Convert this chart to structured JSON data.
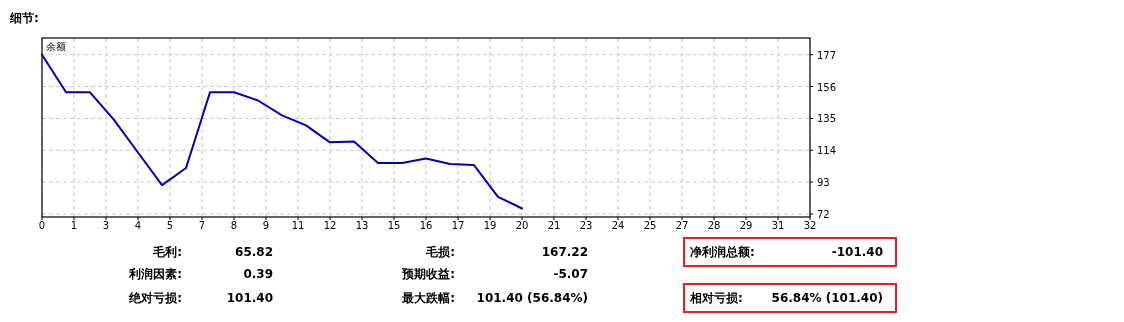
{
  "chart_data": {
    "type": "line",
    "title": "细节:",
    "x": [
      0,
      1,
      2,
      3,
      4,
      5,
      6,
      7,
      8,
      9,
      10,
      11,
      12,
      13,
      14,
      15,
      16,
      17,
      18,
      19,
      20
    ],
    "series": [
      {
        "name": "余额",
        "color": "#0000aa",
        "values": [
          177,
          152.2,
          152.2,
          134,
          112.5,
          91,
          102.3,
          152.2,
          152.2,
          146.8,
          137,
          130.4,
          119.2,
          119.8,
          105.6,
          105.6,
          108.6,
          104.9,
          104.2,
          83.3,
          75.6
        ]
      }
    ],
    "xlim": [
      0,
      32
    ],
    "xticks": [
      {
        "value": 0,
        "label": "0"
      },
      {
        "value": 1.3333,
        "label": "1"
      },
      {
        "value": 2.6667,
        "label": "3"
      },
      {
        "value": 4,
        "label": "4"
      },
      {
        "value": 5.3333,
        "label": "5"
      },
      {
        "value": 6.6667,
        "label": "7"
      },
      {
        "value": 8,
        "label": "8"
      },
      {
        "value": 9.3333,
        "label": "9"
      },
      {
        "value": 10.6667,
        "label": "11"
      },
      {
        "value": 12,
        "label": "12"
      },
      {
        "value": 13.3333,
        "label": "13"
      },
      {
        "value": 14.6667,
        "label": "15"
      },
      {
        "value": 16,
        "label": "16"
      },
      {
        "value": 17.3333,
        "label": "17"
      },
      {
        "value": 18.6667,
        "label": "19"
      },
      {
        "value": 20,
        "label": "20"
      },
      {
        "value": 21.3333,
        "label": "21"
      },
      {
        "value": 22.6667,
        "label": "23"
      },
      {
        "value": 24,
        "label": "24"
      },
      {
        "value": 25.3333,
        "label": "25"
      },
      {
        "value": 26.6667,
        "label": "27"
      },
      {
        "value": 28,
        "label": "28"
      },
      {
        "value": 29.3333,
        "label": "29"
      },
      {
        "value": 30.6667,
        "label": "31"
      },
      {
        "value": 32,
        "label": "32"
      }
    ],
    "ylim": [
      70,
      188
    ],
    "yticks": [
      72,
      93,
      114,
      135,
      156,
      177
    ],
    "grid": true,
    "legend": "top left",
    "marker": "none",
    "line_style": "solid",
    "annotations": [
      "毛利:",
      "65.82",
      "毛损:",
      "167.22",
      "净利润总额:",
      "-101.40",
      "利润因素:",
      "0.39",
      "预期收益:",
      "-5.07",
      "绝对亏损:",
      "101.40",
      "最大跌幅:",
      "101.40 (56.84%)",
      "相对亏损:",
      "56.84% (101.40)"
    ]
  }
}
